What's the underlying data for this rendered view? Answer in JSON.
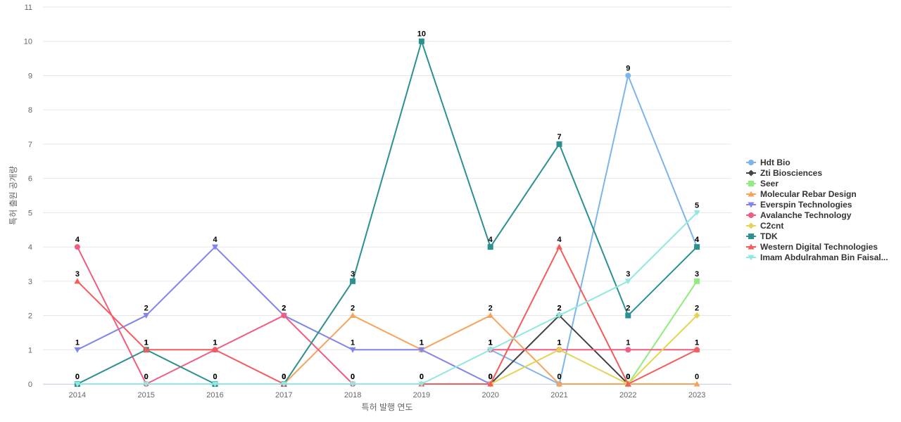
{
  "chart_data": {
    "type": "line",
    "title": "",
    "xlabel": "특허 발행 연도",
    "ylabel": "특허 출원 공개량",
    "x": [
      "2014",
      "2015",
      "2016",
      "2017",
      "2018",
      "2019",
      "2020",
      "2021",
      "2022",
      "2023"
    ],
    "ylim": [
      0,
      11
    ],
    "yticks": [
      0,
      1,
      2,
      3,
      4,
      5,
      6,
      7,
      8,
      9,
      10,
      11
    ],
    "grid": true,
    "legend_position": "right",
    "series": [
      {
        "name": "Hdt Bio",
        "color": "#7cb5ec",
        "marker": "circle",
        "values": [
          null,
          null,
          null,
          null,
          null,
          null,
          1,
          0,
          9,
          4
        ]
      },
      {
        "name": "Zti Biosciences",
        "color": "#434348",
        "marker": "diamond",
        "values": [
          null,
          null,
          null,
          null,
          null,
          null,
          0,
          2,
          0,
          null
        ]
      },
      {
        "name": "Seer",
        "color": "#90ed7d",
        "marker": "square",
        "values": [
          null,
          null,
          null,
          null,
          null,
          null,
          null,
          null,
          0,
          3
        ]
      },
      {
        "name": "Molecular Rebar Design",
        "color": "#f7a35c",
        "marker": "triangle",
        "values": [
          null,
          null,
          null,
          0,
          2,
          1,
          2,
          0,
          0,
          0
        ]
      },
      {
        "name": "Everspin Technologies",
        "color": "#8085e9",
        "marker": "triangle-down",
        "values": [
          1,
          2,
          4,
          2,
          1,
          1,
          0,
          null,
          null,
          null
        ]
      },
      {
        "name": "Avalanche Technology",
        "color": "#f15c80",
        "marker": "circle",
        "values": [
          4,
          0,
          1,
          2,
          0,
          null,
          1,
          1,
          1,
          1
        ]
      },
      {
        "name": "C2cnt",
        "color": "#e4d354",
        "marker": "diamond",
        "values": [
          null,
          null,
          null,
          null,
          null,
          null,
          0,
          1,
          0,
          2
        ]
      },
      {
        "name": "TDK",
        "color": "#2b908f",
        "marker": "square",
        "values": [
          0,
          1,
          0,
          0,
          3,
          10,
          4,
          7,
          2,
          4
        ]
      },
      {
        "name": "Western Digital Technologies",
        "color": "#f45b5b",
        "marker": "triangle",
        "values": [
          3,
          1,
          1,
          0,
          null,
          0,
          0,
          4,
          0,
          1
        ]
      },
      {
        "name": "Imam Abdulrahman Bin Faisal...",
        "color": "#91e8e1",
        "marker": "triangle-down",
        "values": [
          0,
          0,
          0,
          0,
          0,
          0,
          1,
          2,
          3,
          5
        ]
      }
    ]
  }
}
